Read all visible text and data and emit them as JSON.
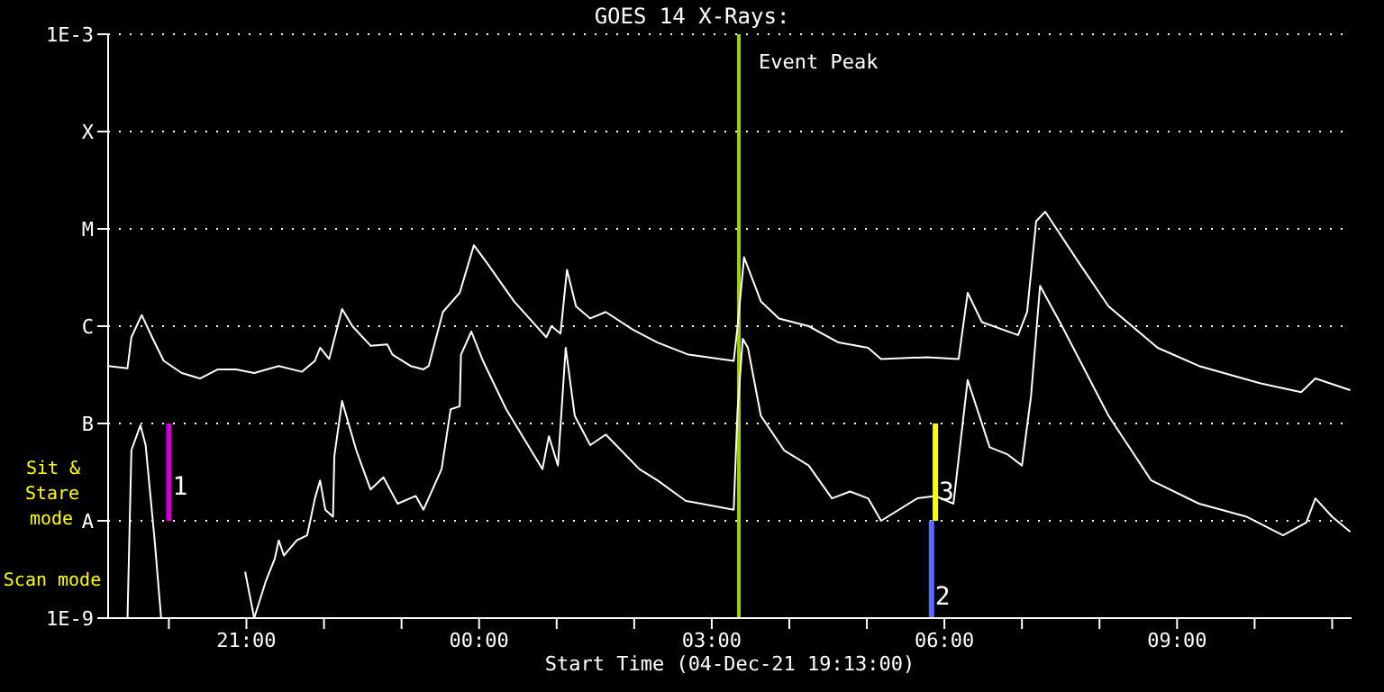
{
  "chart_data": {
    "type": "line",
    "title": "GOES 14 X-Rays:",
    "xlabel": "Start Time (04-Dec-21 19:13:00)",
    "log": "y",
    "grid": "y",
    "line_style": "solid",
    "marker": "none",
    "xlim": [
      "--12-04T19:13",
      "--12-05T11:15"
    ],
    "xticks": [
      {
        "value": "--12-04T20:00",
        "label": null
      },
      {
        "value": "--12-04T21:00",
        "label": "21:00"
      },
      {
        "value": "--12-04T22:00",
        "label": null
      },
      {
        "value": "--12-04T23:00",
        "label": null
      },
      {
        "value": "--12-05T00:00",
        "label": "00:00"
      },
      {
        "value": "--12-05T01:00",
        "label": null
      },
      {
        "value": "--12-05T02:00",
        "label": null
      },
      {
        "value": "--12-05T03:00",
        "label": "03:00"
      },
      {
        "value": "--12-05T04:00",
        "label": null
      },
      {
        "value": "--12-05T05:00",
        "label": null
      },
      {
        "value": "--12-05T06:00",
        "label": "06:00"
      },
      {
        "value": "--12-05T07:00",
        "label": null
      },
      {
        "value": "--12-05T08:00",
        "label": null
      },
      {
        "value": "--12-05T09:00",
        "label": "09:00"
      },
      {
        "value": "--12-05T10:00",
        "label": null
      },
      {
        "value": "--12-05T11:00",
        "label": null
      }
    ],
    "ylim": [
      1e-09,
      0.001
    ],
    "yticks": [
      {
        "value": 1e-09,
        "label": "1E-9"
      },
      {
        "value": 1e-08,
        "label": "A"
      },
      {
        "value": 1e-07,
        "label": "B"
      },
      {
        "value": 1e-06,
        "label": "C"
      },
      {
        "value": 1e-05,
        "label": "M"
      },
      {
        "value": 0.0001,
        "label": "X"
      },
      {
        "value": 0.001,
        "label": "1E-3"
      }
    ],
    "series": [
      {
        "color": "#ffffff",
        "x": [
          "--12-04T19:13",
          "--12-04T19:28",
          "--12-04T19:31",
          "--12-04T19:39",
          "--12-04T19:47",
          "--12-04T19:56",
          "--12-04T20:10",
          "--12-04T20:24",
          "--12-04T20:38",
          "--12-04T20:52",
          "--12-04T21:06",
          "--12-04T21:25",
          "--12-04T21:43",
          "--12-04T21:53",
          "--12-04T21:57",
          "--12-04T22:04",
          "--12-04T22:14",
          "--12-04T22:22",
          "--12-04T22:36",
          "--12-04T22:49",
          "--12-04T22:53",
          "--12-04T23:07",
          "--12-04T23:17",
          "--12-04T23:21",
          "--12-04T23:32",
          "--12-04T23:45",
          "--12-04T23:56",
          "--12-05T00:07",
          "--12-05T00:27",
          "--12-05T00:52",
          "--12-05T00:56",
          "--12-05T01:03",
          "--12-05T01:08",
          "--12-05T01:15",
          "--12-05T01:26",
          "--12-05T01:38",
          "--12-05T01:59",
          "--12-05T02:18",
          "--12-05T02:42",
          "--12-05T03:17",
          "--12-05T03:20",
          "--12-05T03:25",
          "--12-05T03:38",
          "--12-05T03:52",
          "--12-05T04:15",
          "--12-05T04:38",
          "--12-05T05:01",
          "--12-05T05:11",
          "--12-05T05:47",
          "--12-05T06:11",
          "--12-05T06:18",
          "--12-05T06:29",
          "--12-05T06:57",
          "--12-05T07:04",
          "--12-05T07:11",
          "--12-05T07:18",
          "--12-05T07:45",
          "--12-05T08:07",
          "--12-05T08:45",
          "--12-05T09:17",
          "--12-05T10:04",
          "--12-05T10:36",
          "--12-05T10:47",
          "--12-05T11:14"
        ],
        "values": [
          3.9e-07,
          3.7e-07,
          7.7e-07,
          1.3e-06,
          7.7e-07,
          4.4e-07,
          3.3e-07,
          2.9e-07,
          3.6e-07,
          3.6e-07,
          3.3e-07,
          3.9e-07,
          3.4e-07,
          4.4e-07,
          6e-07,
          4.6e-07,
          1.5e-06,
          1e-06,
          6.3e-07,
          6.5e-07,
          5.1e-07,
          3.9e-07,
          3.6e-07,
          3.9e-07,
          1.4e-06,
          2.2e-06,
          6.8e-06,
          4.3e-06,
          1.8e-06,
          7.7e-07,
          1e-06,
          8.4e-07,
          3.8e-06,
          1.6e-06,
          1.2e-06,
          1.4e-06,
          9.2e-07,
          6.8e-07,
          5.1e-07,
          4.4e-07,
          1e-06,
          5.1e-06,
          1.8e-06,
          1.2e-06,
          1e-06,
          6.8e-07,
          6e-07,
          4.6e-07,
          4.8e-07,
          4.6e-07,
          2.2e-06,
          1.1e-06,
          8.1e-07,
          1.4e-06,
          1.2e-05,
          1.5e-05,
          4.3e-06,
          1.6e-06,
          6e-07,
          3.9e-07,
          2.6e-07,
          2.1e-07,
          2.9e-07,
          2.2e-07
        ]
      },
      {
        "color": "#ffffff",
        "x": [
          "--12-04T19:28",
          "--12-04T19:31",
          "--12-04T19:38",
          "--12-04T19:42",
          "--12-04T19:49",
          "--12-04T19:54",
          "--12-04T20:20",
          "--12-04T20:59",
          "--12-04T21:06",
          "--12-04T21:15",
          "--12-04T21:22",
          "--12-04T21:25",
          "--12-04T21:29",
          "--12-04T21:39",
          "--12-04T21:47",
          "--12-04T21:53",
          "--12-04T21:57",
          "--12-04T22:01",
          "--12-04T22:07",
          "--12-04T22:08",
          "--12-04T22:14",
          "--12-04T22:25",
          "--12-04T22:36",
          "--12-04T22:46",
          "--12-04T22:57",
          "--12-04T23:11",
          "--12-04T23:17",
          "--12-04T23:31",
          "--12-04T23:38",
          "--12-04T23:45",
          "--12-04T23:46",
          "--12-04T23:54",
          "--12-05T00:03",
          "--12-05T00:21",
          "--12-05T00:49",
          "--12-05T00:54",
          "--12-05T01:01",
          "--12-05T01:07",
          "--12-05T01:14",
          "--12-05T01:26",
          "--12-05T01:38",
          "--12-05T02:04",
          "--12-05T02:18",
          "--12-05T02:40",
          "--12-05T03:17",
          "--12-05T03:20",
          "--12-05T03:24",
          "--12-05T03:28",
          "--12-05T03:38",
          "--12-05T03:56",
          "--12-05T04:15",
          "--12-05T04:33",
          "--12-05T04:47",
          "--12-05T05:01",
          "--12-05T05:11",
          "--12-05T05:39",
          "--12-05T05:53",
          "--12-05T06:07",
          "--12-05T06:18",
          "--12-05T06:35",
          "--12-05T06:49",
          "--12-05T07:00",
          "--12-05T07:07",
          "--12-05T07:14",
          "--12-05T07:31",
          "--12-05T08:07",
          "--12-05T08:40",
          "--12-05T09:17",
          "--12-05T09:54",
          "--12-05T10:22",
          "--12-05T10:40",
          "--12-05T10:47",
          "--12-05T11:00",
          "--12-05T11:14"
        ],
        "values": [
          1e-09,
          5.3e-08,
          9.6e-08,
          6e-08,
          6.3e-09,
          1e-09,
          null,
          3e-09,
          1e-09,
          2.4e-09,
          4.1e-09,
          6.3e-09,
          4.4e-09,
          6.3e-09,
          7.1e-09,
          1.7e-08,
          2.6e-08,
          1.3e-08,
          1.1e-08,
          4.6e-08,
          1.7e-07,
          5.3e-08,
          2.1e-08,
          2.8e-08,
          1.5e-08,
          1.8e-08,
          1.3e-08,
          3.4e-08,
          1.4e-07,
          1.5e-07,
          5.1e-07,
          8.8e-07,
          4.4e-07,
          1.4e-07,
          3.4e-08,
          7.4e-08,
          3.7e-08,
          6e-07,
          1.2e-07,
          6e-08,
          7.7e-08,
          3.4e-08,
          2.6e-08,
          1.6e-08,
          1.3e-08,
          1.4e-07,
          7.4e-07,
          6e-07,
          1.2e-07,
          5.3e-08,
          3.7e-08,
          1.7e-08,
          2e-08,
          1.7e-08,
          1e-08,
          1.7e-08,
          1.8e-08,
          1.5e-08,
          2.8e-07,
          5.7e-08,
          4.8e-08,
          3.7e-08,
          1.9e-07,
          2.6e-06,
          1e-06,
          1.2e-07,
          2.6e-08,
          1.5e-08,
          1.1e-08,
          7.1e-09,
          9.6e-09,
          1.7e-08,
          1.1e-08,
          7.7e-09
        ]
      },
      {
        "color": "#d000d0",
        "x": [
          "--12-04T20:00",
          "--12-04T20:00"
        ],
        "values": [
          1e-08,
          1e-07
        ]
      },
      {
        "color": "#5a6aff",
        "x": [
          "--12-05T05:50",
          "--12-05T05:50"
        ],
        "values": [
          1e-09,
          1e-08
        ]
      },
      {
        "color": "#ffff00",
        "x": [
          "--12-05T05:53",
          "--12-05T05:53"
        ],
        "values": [
          1e-08,
          1e-07
        ]
      }
    ],
    "ref_lines": [
      {
        "axis": "x",
        "value": "--12-05T03:21",
        "label": "Event Peak",
        "color": "#a0d000"
      }
    ],
    "annotations": [
      "Sit & Stare mode",
      "Scan mode",
      {
        "text": "1",
        "x": "--12-04T20:00",
        "y": 2.3e-08
      },
      {
        "text": "2",
        "x": "--12-05T05:50",
        "y": 1.7e-09
      },
      {
        "text": "3",
        "x": "--12-05T05:53",
        "y": 2e-08
      }
    ]
  }
}
